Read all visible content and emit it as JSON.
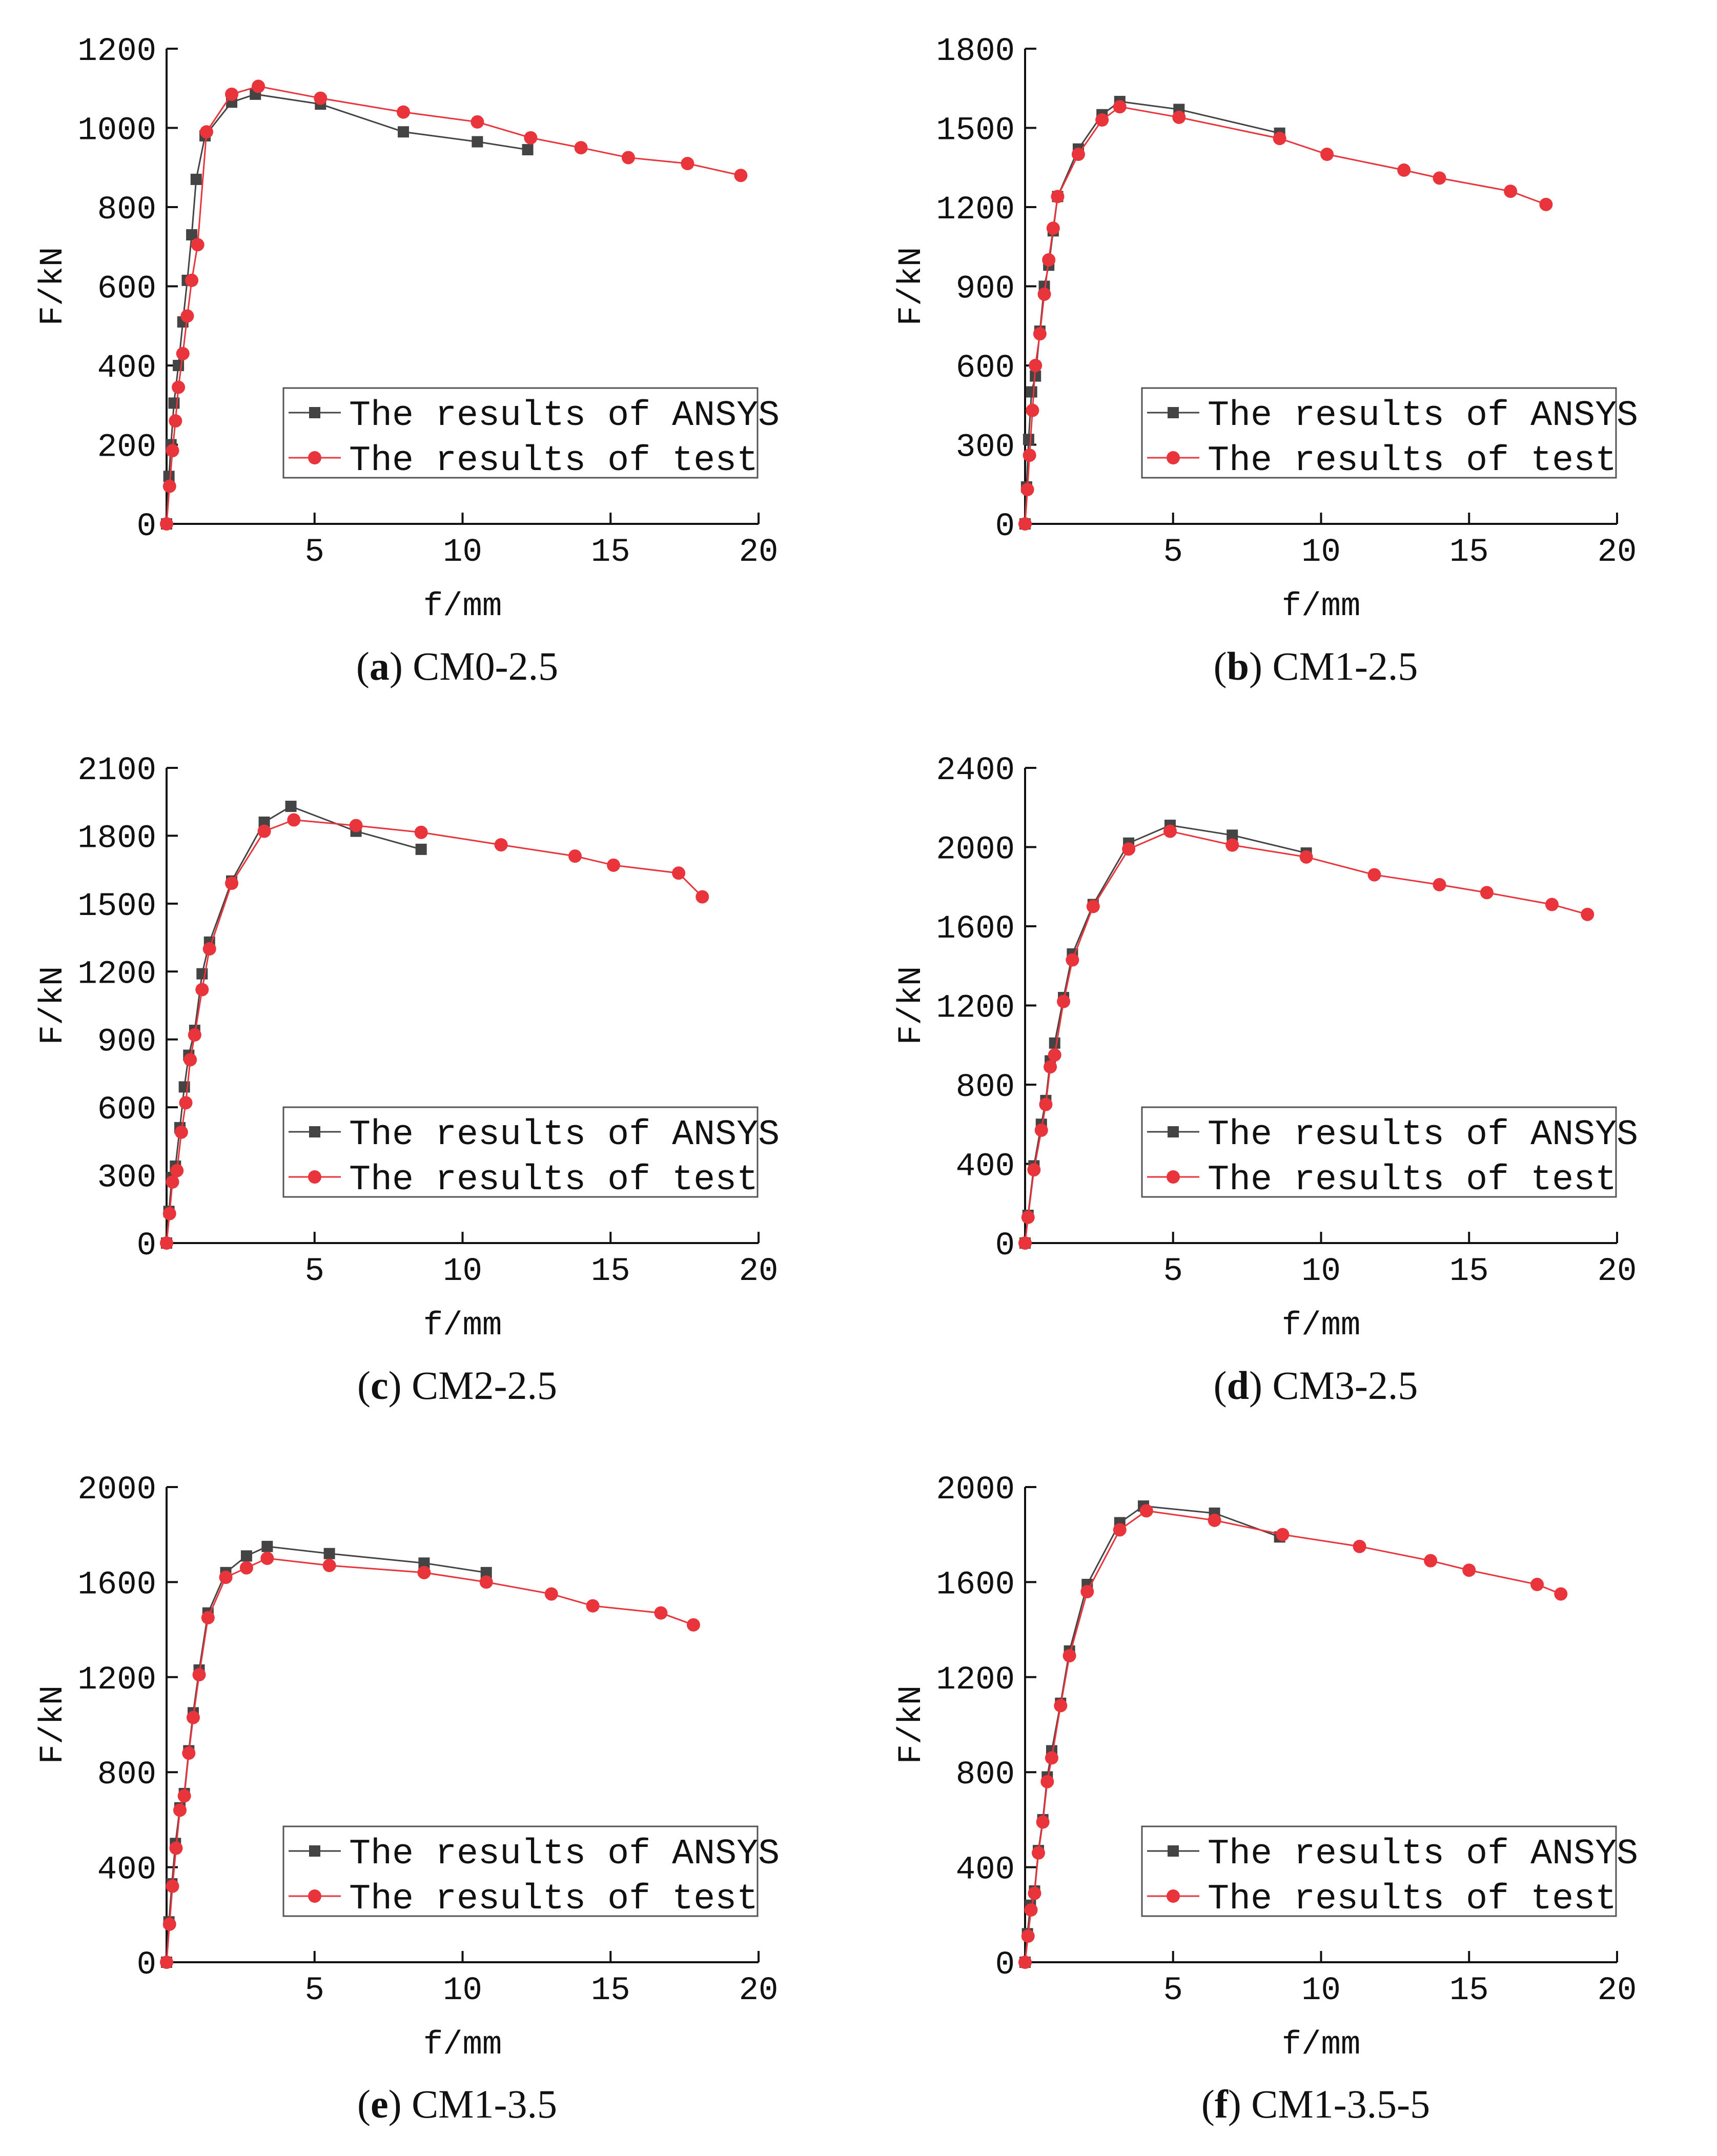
{
  "colors": {
    "ansys": "#444444",
    "test": "#e8343a",
    "axis": "#111111"
  },
  "chart_data": [
    {
      "type": "line",
      "caption_label": "a",
      "caption_name": "CM0-2.5",
      "xlabel": "f/mm",
      "ylabel": "F/kN",
      "xlim": [
        0,
        20
      ],
      "ylim": [
        0,
        1200
      ],
      "xticks": [
        5,
        10,
        15,
        20
      ],
      "yticks": [
        0,
        200,
        400,
        600,
        800,
        1000,
        1200
      ],
      "legend": [
        "The results of ANSYS",
        "The results of test"
      ],
      "series": [
        {
          "name": "The results of ANSYS",
          "marker": "square",
          "x": [
            0,
            0.08,
            0.15,
            0.25,
            0.4,
            0.55,
            0.7,
            0.85,
            1.0,
            1.3,
            2.2,
            3.0,
            5.2,
            8.0,
            10.5,
            12.2
          ],
          "y": [
            0,
            120,
            200,
            305,
            400,
            510,
            615,
            730,
            870,
            980,
            1065,
            1085,
            1060,
            990,
            965,
            945
          ]
        },
        {
          "name": "The results of test",
          "marker": "circle",
          "x": [
            0,
            0.1,
            0.2,
            0.3,
            0.4,
            0.55,
            0.7,
            0.85,
            1.05,
            1.35,
            2.2,
            3.1,
            5.2,
            8.0,
            10.5,
            12.3,
            14.0,
            15.6,
            17.6,
            19.4
          ],
          "y": [
            0,
            95,
            185,
            260,
            345,
            430,
            525,
            615,
            705,
            990,
            1085,
            1105,
            1075,
            1040,
            1015,
            975,
            950,
            925,
            910,
            880
          ]
        }
      ]
    },
    {
      "type": "line",
      "caption_label": "b",
      "caption_name": "CM1-2.5",
      "xlabel": "f/mm",
      "ylabel": "F/kN",
      "xlim": [
        0,
        20
      ],
      "ylim": [
        0,
        1800
      ],
      "xticks": [
        5,
        10,
        15,
        20
      ],
      "yticks": [
        0,
        300,
        600,
        900,
        1200,
        1500,
        1800
      ],
      "legend": [
        "The results of ANSYS",
        "The results of test"
      ],
      "series": [
        {
          "name": "The results of ANSYS",
          "marker": "square",
          "x": [
            0,
            0.05,
            0.12,
            0.22,
            0.35,
            0.5,
            0.65,
            0.8,
            0.95,
            1.1,
            1.8,
            2.6,
            3.2,
            5.2,
            8.6
          ],
          "y": [
            0,
            140,
            320,
            500,
            560,
            730,
            900,
            980,
            1110,
            1240,
            1420,
            1550,
            1600,
            1570,
            1480
          ]
        },
        {
          "name": "The results of test",
          "marker": "circle",
          "x": [
            0,
            0.08,
            0.15,
            0.25,
            0.35,
            0.5,
            0.65,
            0.8,
            0.95,
            1.1,
            1.8,
            2.6,
            3.2,
            5.2,
            8.6,
            10.2,
            12.8,
            14.0,
            16.4,
            17.6
          ],
          "y": [
            0,
            130,
            260,
            430,
            600,
            720,
            870,
            1000,
            1120,
            1240,
            1400,
            1530,
            1580,
            1540,
            1460,
            1400,
            1340,
            1310,
            1260,
            1210
          ]
        }
      ]
    },
    {
      "type": "line",
      "caption_label": "c",
      "caption_name": "CM2-2.5",
      "xlabel": "f/mm",
      "ylabel": "F/kN",
      "xlim": [
        0,
        20
      ],
      "ylim": [
        0,
        2100
      ],
      "xticks": [
        5,
        10,
        15,
        20
      ],
      "yticks": [
        0,
        300,
        600,
        900,
        1200,
        1500,
        1800,
        2100
      ],
      "legend": [
        "The results of ANSYS",
        "The results of test"
      ],
      "series": [
        {
          "name": "The results of ANSYS",
          "marker": "square",
          "x": [
            0,
            0.08,
            0.18,
            0.3,
            0.45,
            0.6,
            0.75,
            0.95,
            1.2,
            1.45,
            2.2,
            3.3,
            4.2,
            6.4,
            8.6
          ],
          "y": [
            0,
            140,
            290,
            340,
            510,
            690,
            830,
            940,
            1190,
            1330,
            1600,
            1860,
            1930,
            1820,
            1740
          ]
        },
        {
          "name": "The results of test",
          "marker": "circle",
          "x": [
            0,
            0.1,
            0.2,
            0.35,
            0.5,
            0.65,
            0.8,
            0.95,
            1.2,
            1.45,
            2.2,
            3.3,
            4.3,
            6.4,
            8.6,
            11.3,
            13.8,
            15.1,
            17.3,
            18.1
          ],
          "y": [
            0,
            130,
            270,
            320,
            490,
            620,
            810,
            920,
            1120,
            1300,
            1590,
            1820,
            1870,
            1845,
            1815,
            1760,
            1710,
            1670,
            1635,
            1530
          ]
        }
      ]
    },
    {
      "type": "line",
      "caption_label": "d",
      "caption_name": "CM3-2.5",
      "xlabel": "f/mm",
      "ylabel": "F/kN",
      "xlim": [
        0,
        20
      ],
      "ylim": [
        0,
        2400
      ],
      "xticks": [
        5,
        10,
        15,
        20
      ],
      "yticks": [
        0,
        400,
        800,
        1200,
        1600,
        2000,
        2400
      ],
      "legend": [
        "The results of ANSYS",
        "The results of test"
      ],
      "series": [
        {
          "name": "The results of ANSYS",
          "marker": "square",
          "x": [
            0,
            0.1,
            0.3,
            0.55,
            0.7,
            0.85,
            1.0,
            1.3,
            1.6,
            2.3,
            3.5,
            4.9,
            7.0,
            9.5
          ],
          "y": [
            0,
            140,
            390,
            600,
            720,
            920,
            1010,
            1240,
            1460,
            1710,
            2020,
            2110,
            2060,
            1970
          ]
        },
        {
          "name": "The results of test",
          "marker": "circle",
          "x": [
            0,
            0.1,
            0.3,
            0.55,
            0.7,
            0.85,
            1.0,
            1.3,
            1.6,
            2.3,
            3.5,
            4.9,
            7.0,
            9.5,
            11.8,
            14.0,
            15.6,
            17.8,
            19.0
          ],
          "y": [
            0,
            130,
            370,
            570,
            700,
            890,
            950,
            1220,
            1430,
            1700,
            1990,
            2080,
            2010,
            1950,
            1860,
            1810,
            1770,
            1710,
            1660
          ]
        }
      ]
    },
    {
      "type": "line",
      "caption_label": "e",
      "caption_name": "CM1-3.5",
      "xlabel": "f/mm",
      "ylabel": "F/kN",
      "xlim": [
        0,
        20
      ],
      "ylim": [
        0,
        2000
      ],
      "xticks": [
        5,
        10,
        15,
        20
      ],
      "yticks": [
        0,
        400,
        800,
        1200,
        1600,
        2000
      ],
      "legend": [
        "The results of ANSYS",
        "The results of test"
      ],
      "series": [
        {
          "name": "The results of ANSYS",
          "marker": "square",
          "x": [
            0,
            0.08,
            0.18,
            0.3,
            0.45,
            0.6,
            0.75,
            0.9,
            1.1,
            1.4,
            2.0,
            2.7,
            3.4,
            5.5,
            8.7,
            10.8
          ],
          "y": [
            0,
            170,
            330,
            500,
            650,
            710,
            890,
            1050,
            1230,
            1470,
            1640,
            1710,
            1750,
            1720,
            1680,
            1640
          ]
        },
        {
          "name": "The results of test",
          "marker": "circle",
          "x": [
            0,
            0.1,
            0.2,
            0.32,
            0.45,
            0.6,
            0.75,
            0.9,
            1.1,
            1.4,
            2.0,
            2.7,
            3.4,
            5.5,
            8.7,
            10.8,
            13.0,
            14.4,
            16.7,
            17.8
          ],
          "y": [
            0,
            160,
            320,
            480,
            640,
            700,
            880,
            1030,
            1210,
            1450,
            1620,
            1660,
            1700,
            1670,
            1640,
            1600,
            1550,
            1500,
            1470,
            1420
          ]
        }
      ]
    },
    {
      "type": "line",
      "caption_label": "f",
      "caption_name": "CM1-3.5-5",
      "xlabel": "f/mm",
      "ylabel": "F/kN",
      "xlim": [
        0,
        20
      ],
      "ylim": [
        0,
        2000
      ],
      "xticks": [
        5,
        10,
        15,
        20
      ],
      "yticks": [
        0,
        400,
        800,
        1200,
        1600,
        2000
      ],
      "legend": [
        "The results of ANSYS",
        "The results of test"
      ],
      "series": [
        {
          "name": "The results of ANSYS",
          "marker": "square",
          "x": [
            0,
            0.08,
            0.18,
            0.32,
            0.45,
            0.6,
            0.75,
            0.9,
            1.2,
            1.5,
            2.1,
            3.2,
            4.0,
            6.4,
            8.6
          ],
          "y": [
            0,
            120,
            240,
            300,
            470,
            600,
            780,
            890,
            1090,
            1310,
            1590,
            1850,
            1920,
            1890,
            1790
          ]
        },
        {
          "name": "The results of test",
          "marker": "circle",
          "x": [
            0,
            0.1,
            0.2,
            0.32,
            0.45,
            0.6,
            0.75,
            0.9,
            1.2,
            1.5,
            2.1,
            3.2,
            4.1,
            6.4,
            8.7,
            11.3,
            13.7,
            15.0,
            17.3,
            18.1
          ],
          "y": [
            0,
            110,
            220,
            290,
            460,
            590,
            760,
            860,
            1080,
            1290,
            1560,
            1820,
            1900,
            1860,
            1800,
            1750,
            1690,
            1650,
            1590,
            1550
          ]
        }
      ]
    }
  ]
}
